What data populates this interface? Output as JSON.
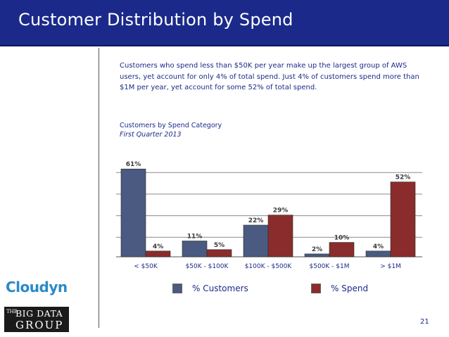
{
  "title": "Customer Distribution by Spend",
  "intro": "Customers who spend less than $50K per year make up the largest group of AWS users, yet account for only 4% of total spend. Just 4% of customers spend more than $1M per year, yet account for some 52% of total spend.",
  "chart_title": "Customers by Spend Category",
  "chart_subtitle": "First Quarter 2013",
  "chart_data": {
    "type": "bar",
    "title": "Customers by Spend Category",
    "subtitle": "First Quarter 2013",
    "categories": [
      "< $50K",
      "$50K - $100K",
      "$100K - $500K",
      "$500K - $1M",
      "> $1M"
    ],
    "series": [
      {
        "name": "% Customers",
        "values": [
          61,
          11,
          22,
          2,
          4
        ],
        "labels": [
          "61%",
          "11%",
          "22%",
          "2%",
          "4%"
        ],
        "color": "#4a5a80"
      },
      {
        "name": "% Spend",
        "values": [
          4,
          5,
          29,
          10,
          52
        ],
        "labels": [
          "4%",
          "5%",
          "29%",
          "10%",
          "52%"
        ],
        "color": "#8b2c2c"
      }
    ],
    "ylim": [
      0,
      65
    ],
    "grid": true,
    "legend": "bottom"
  },
  "legend": {
    "customers": "% Customers",
    "spend": "% Spend"
  },
  "logo_text": "Cloudyn",
  "brand": {
    "the": "THE",
    "line1": "BIG DATA",
    "line2": "GROUP"
  },
  "page_number": "21",
  "colors": {
    "title_bg": "#1b2a8a",
    "text": "#1b2a8a",
    "customers": "#4a5a80",
    "spend": "#8b2c2c"
  }
}
